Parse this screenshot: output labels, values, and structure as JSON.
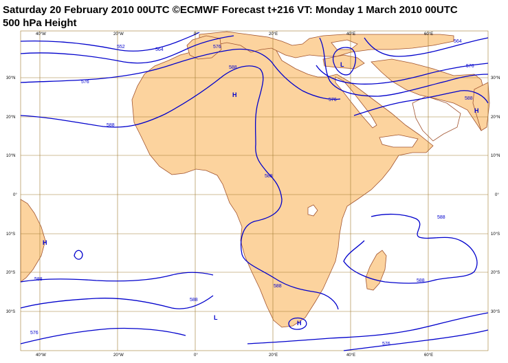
{
  "header": {
    "title_line1": "Saturday 20 February 2010 00UTC ©ECMWF Forecast t+216 VT: Monday 1 March 2010 00UTC",
    "title_line2": "500 hPa Height"
  },
  "map": {
    "lon_labels": [
      "40°W",
      "20°W",
      "0°",
      "20°E",
      "40°E",
      "60°E"
    ],
    "lat_labels": [
      "30°N",
      "20°N",
      "10°N",
      "0°",
      "10°S",
      "20°S",
      "30°S"
    ],
    "contour_labels": [
      "552",
      "564",
      "576",
      "588",
      "576",
      "588",
      "576",
      "588",
      "588",
      "588",
      "564",
      "576",
      "588",
      "588",
      "588",
      "588",
      "576",
      "576"
    ],
    "pressure_centres": [
      "H",
      "H",
      "L",
      "H",
      "L",
      "H"
    ],
    "colors": {
      "land": "#fcd39e",
      "coast": "#a0522d",
      "contour": "#0000cc",
      "grid": "#a07a30"
    }
  }
}
